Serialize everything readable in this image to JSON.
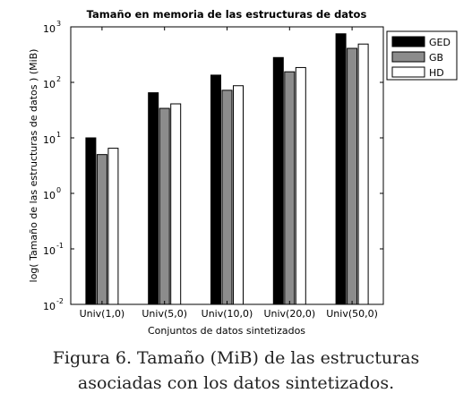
{
  "chart_data": {
    "type": "bar",
    "title": "Tamaño en memoria de las estructuras de datos",
    "xlabel": "Conjuntos de datos sintetizados",
    "ylabel": "log( Tamaño de las estructuras de datos ) (MiB)",
    "y_scale": "log",
    "ylim": [
      0.01,
      1000
    ],
    "y_ticks": [
      {
        "base": "10",
        "exp": "-2",
        "value": 0.01
      },
      {
        "base": "10",
        "exp": "-1",
        "value": 0.1
      },
      {
        "base": "10",
        "exp": "0",
        "value": 1
      },
      {
        "base": "10",
        "exp": "1",
        "value": 10
      },
      {
        "base": "10",
        "exp": "2",
        "value": 100
      },
      {
        "base": "10",
        "exp": "3",
        "value": 1000
      }
    ],
    "categories": [
      "Univ(1,0)",
      "Univ(5,0)",
      "Univ(10,0)",
      "Univ(20,0)",
      "Univ(50,0)"
    ],
    "series": [
      {
        "name": "GED",
        "color": "#000000",
        "values": [
          10,
          65,
          135,
          280,
          750
        ]
      },
      {
        "name": "GB",
        "color": "#8c8c8c",
        "values": [
          5,
          34,
          72,
          155,
          410
        ]
      },
      {
        "name": "HD",
        "color": "#ffffff",
        "values": [
          6.5,
          41,
          87,
          185,
          490
        ]
      }
    ],
    "grid": false,
    "legend": "top-right"
  },
  "caption": {
    "line1": "Figura 6. Tamaño (MiB) de las estructuras",
    "line2": "asociadas con los datos sintetizados."
  }
}
